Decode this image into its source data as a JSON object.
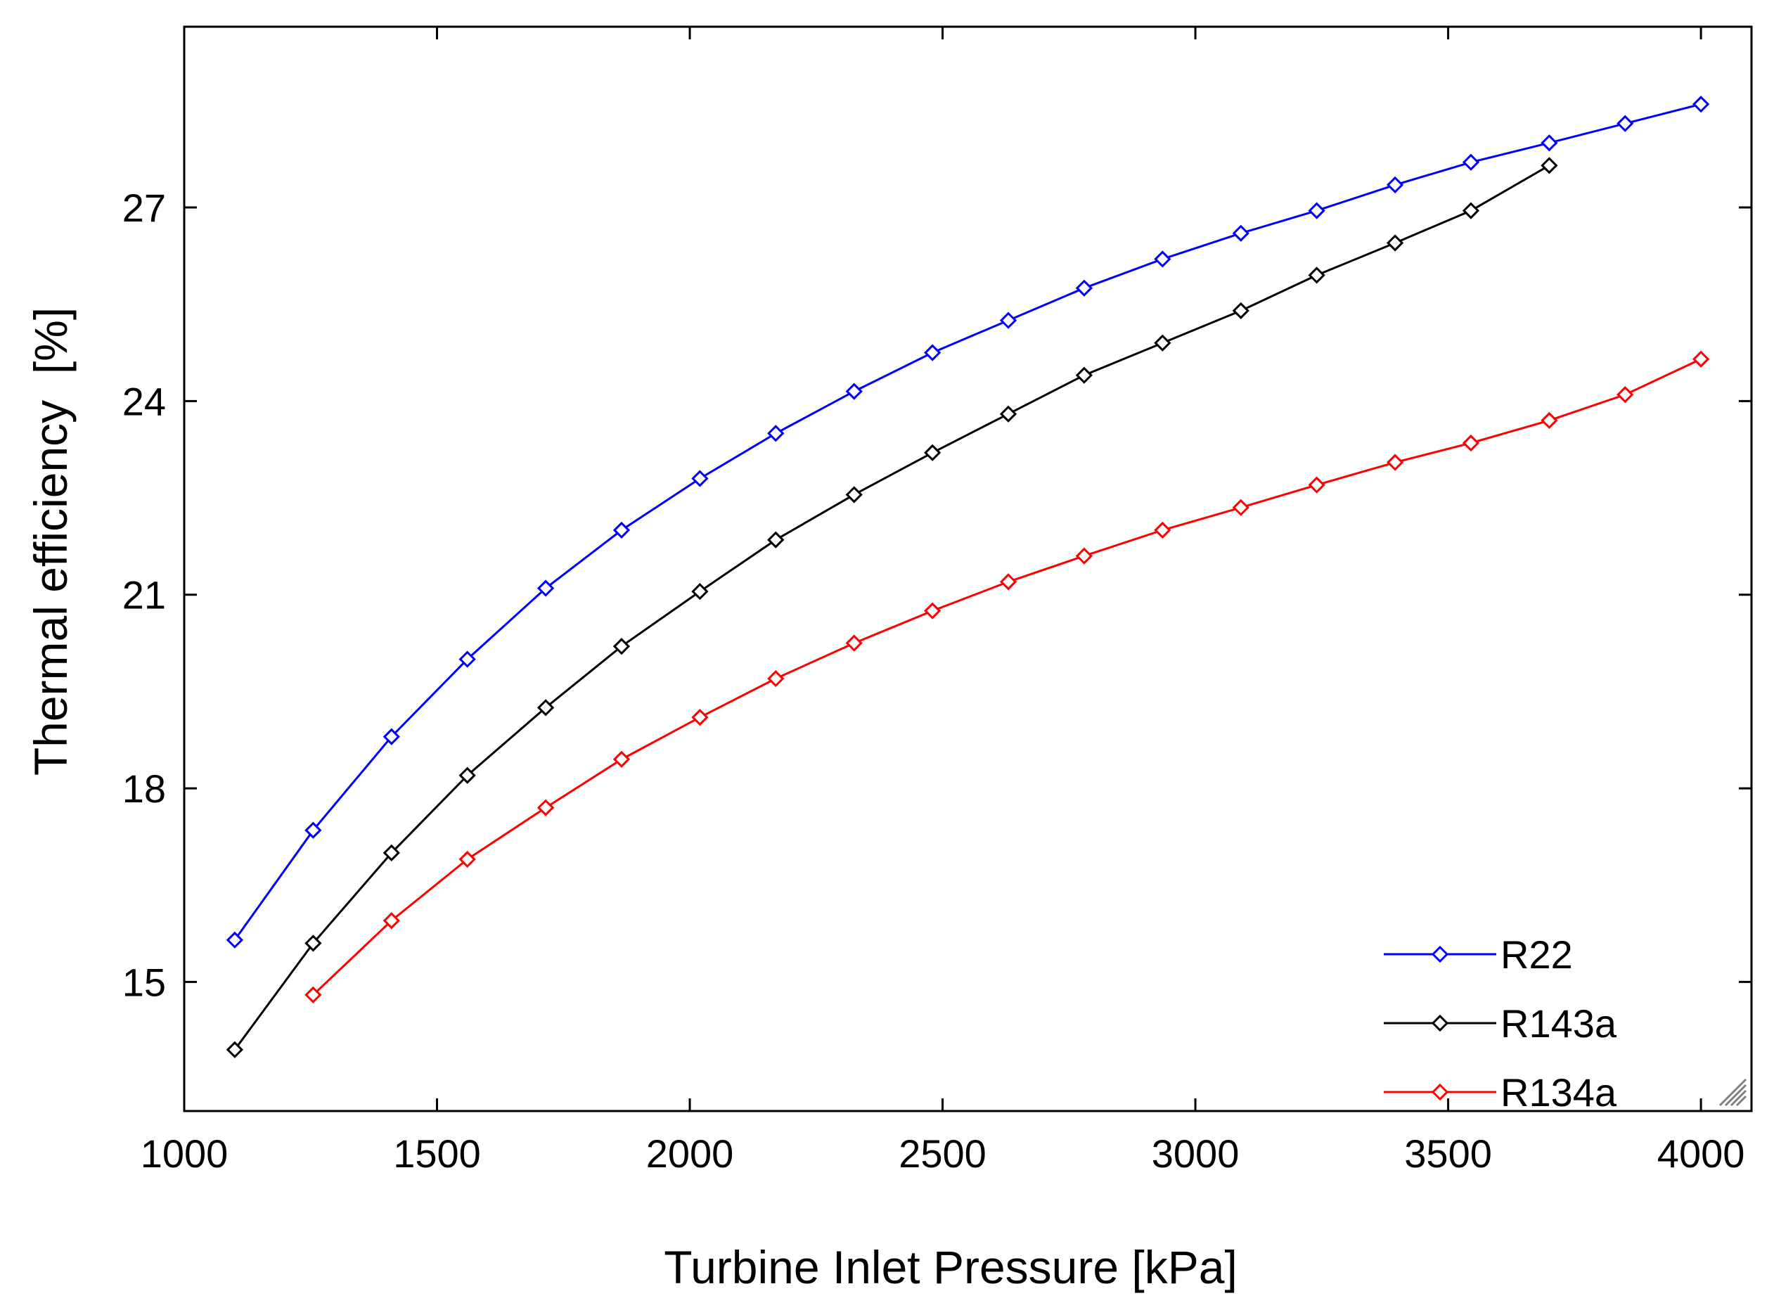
{
  "chart_data": {
    "type": "line",
    "title": "",
    "xlabel": "Turbine Inlet Pressure [kPa]",
    "ylabel": "Thermal efficiency  [%]",
    "xlim": [
      1000,
      4100
    ],
    "ylim": [
      13,
      29.8
    ],
    "xticks": [
      1000,
      1500,
      2000,
      2500,
      3000,
      3500,
      4000
    ],
    "yticks": [
      15,
      18,
      21,
      24,
      27
    ],
    "grid": false,
    "legend_position": "bottom-right",
    "series": [
      {
        "name": "R22",
        "color": "#0000ff",
        "x": [
          1100,
          1255,
          1410,
          1560,
          1715,
          1865,
          2020,
          2170,
          2325,
          2480,
          2630,
          2780,
          2935,
          3090,
          3240,
          3395,
          3545,
          3700,
          3850,
          4000
        ],
        "y": [
          15.65,
          17.35,
          18.8,
          20.0,
          21.1,
          22.0,
          22.8,
          23.5,
          24.15,
          24.75,
          25.25,
          25.75,
          26.2,
          26.6,
          26.95,
          27.35,
          27.7,
          28.0,
          28.3,
          28.6
        ]
      },
      {
        "name": "R143a",
        "color": "#000000",
        "x": [
          1100,
          1255,
          1410,
          1560,
          1715,
          1865,
          2020,
          2170,
          2325,
          2480,
          2630,
          2780,
          2935,
          3090,
          3240,
          3395,
          3545,
          3700
        ],
        "y": [
          13.95,
          15.6,
          17.0,
          18.2,
          19.25,
          20.2,
          21.05,
          21.85,
          22.55,
          23.2,
          23.8,
          24.4,
          24.9,
          25.4,
          25.95,
          26.45,
          26.95,
          27.65
        ]
      },
      {
        "name": "R134a",
        "color": "#ff0000",
        "x": [
          1255,
          1410,
          1560,
          1715,
          1865,
          2020,
          2170,
          2325,
          2480,
          2630,
          2780,
          2935,
          3090,
          3240,
          3395,
          3545,
          3700,
          3850,
          4000
        ],
        "y": [
          14.8,
          15.95,
          16.9,
          17.7,
          18.45,
          19.1,
          19.7,
          20.25,
          20.75,
          21.2,
          21.6,
          22.0,
          22.35,
          22.7,
          23.05,
          23.35,
          23.7,
          24.1,
          24.65
        ]
      }
    ]
  }
}
